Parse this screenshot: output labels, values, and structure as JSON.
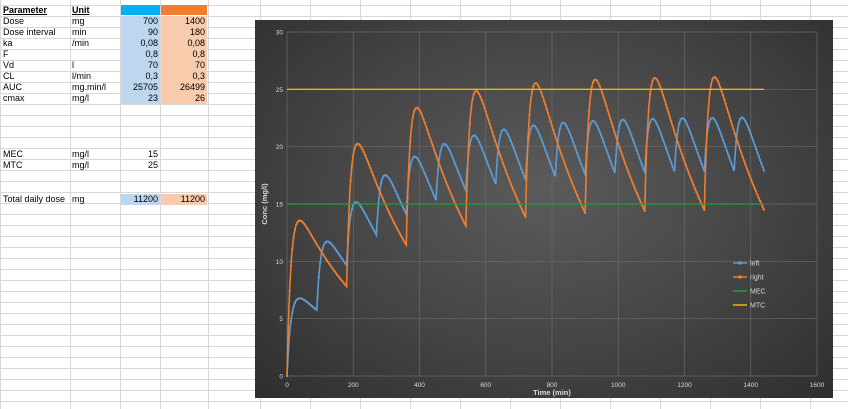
{
  "table": {
    "headers": {
      "parameter": "Parameter",
      "unit": "Unit"
    },
    "rows": [
      {
        "parameter": "Dose",
        "unit": "mg",
        "left": "700",
        "right": "1400"
      },
      {
        "parameter": "Dose interval",
        "unit": "min",
        "left": "90",
        "right": "180"
      },
      {
        "parameter": "ka",
        "unit": "/min",
        "left": "0,08",
        "right": "0,08"
      },
      {
        "parameter": "F",
        "unit": "",
        "left": "0,8",
        "right": "0,8"
      },
      {
        "parameter": "Vd",
        "unit": "l",
        "left": "70",
        "right": "70"
      },
      {
        "parameter": "CL",
        "unit": "l/min",
        "left": "0,3",
        "right": "0,3"
      },
      {
        "parameter": "AUC",
        "unit": "mg.min/l",
        "left": "25705",
        "right": "26499"
      },
      {
        "parameter": "cmax",
        "unit": "mg/l",
        "left": "23",
        "right": "26"
      }
    ],
    "limits": [
      {
        "parameter": "MEC",
        "unit": "mg/l",
        "value": "15"
      },
      {
        "parameter": "MTC",
        "unit": "mg/l",
        "value": "25"
      }
    ],
    "total": {
      "parameter": "Total daily dose",
      "unit": "mg",
      "left": "11200",
      "right": "11200"
    }
  },
  "colors": {
    "left": "#5b9bd5",
    "right": "#ed7d31",
    "mec": "#1f9e3a",
    "mtc": "#f0b400",
    "header_blue": "#00b0f0",
    "header_orange": "#ed7d31"
  },
  "chart_data": {
    "type": "line",
    "xlabel": "Time (min)",
    "ylabel": "Conc (mg/l)",
    "xlim": [
      0,
      1600
    ],
    "ylim": [
      0,
      30
    ],
    "x_ticks": [
      "0",
      "200",
      "400",
      "600",
      "800",
      "1000",
      "1200",
      "1400",
      "1600"
    ],
    "y_ticks": [
      "0",
      "5",
      "10",
      "15",
      "20",
      "25",
      "30"
    ],
    "grid": true,
    "legend_position": "right",
    "series": [
      {
        "name": "left",
        "dose": 700,
        "interval": 90,
        "ka": 0.08,
        "F": 0.8,
        "Vd": 70,
        "CL": 0.3,
        "t_end": 1440,
        "color": "#5b9bd5"
      },
      {
        "name": "right",
        "dose": 1400,
        "interval": 180,
        "ka": 0.08,
        "F": 0.8,
        "Vd": 70,
        "CL": 0.3,
        "t_end": 1440,
        "color": "#ed7d31"
      },
      {
        "name": "MEC",
        "value": 15,
        "color": "#1f9e3a"
      },
      {
        "name": "MTC",
        "value": 25,
        "color": "#f0b400"
      }
    ]
  }
}
